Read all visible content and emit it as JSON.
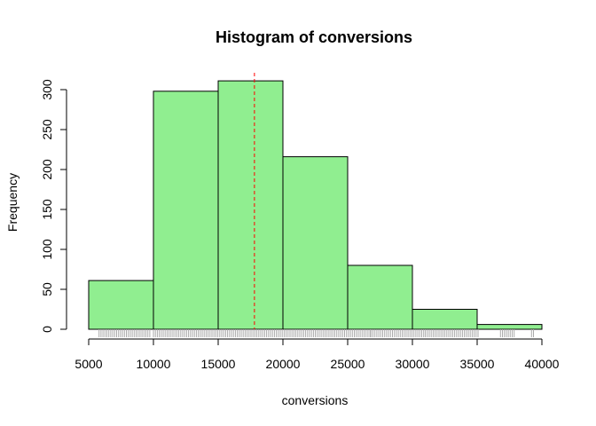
{
  "chart_data": {
    "type": "bar",
    "title": "Histogram of conversions",
    "xlabel": "conversions",
    "ylabel": "Frequency",
    "bins": [
      {
        "start": 5000,
        "end": 10000,
        "count": 61
      },
      {
        "start": 10000,
        "end": 15000,
        "count": 298
      },
      {
        "start": 15000,
        "end": 20000,
        "count": 311
      },
      {
        "start": 20000,
        "end": 25000,
        "count": 216
      },
      {
        "start": 25000,
        "end": 30000,
        "count": 80
      },
      {
        "start": 30000,
        "end": 35000,
        "count": 25
      },
      {
        "start": 35000,
        "end": 40000,
        "count": 6
      }
    ],
    "xlim": [
      5000,
      40000
    ],
    "ylim": [
      0,
      320
    ],
    "x_ticks": [
      5000,
      10000,
      15000,
      20000,
      25000,
      30000,
      35000,
      40000
    ],
    "y_ticks": [
      0,
      50,
      100,
      150,
      200,
      250,
      300
    ],
    "mean_line": 17800,
    "rug_segments": [
      [
        5800,
        9800
      ],
      [
        10000,
        22500
      ],
      [
        22500,
        26800
      ],
      [
        26800,
        31000
      ],
      [
        31000,
        35200
      ],
      [
        36800,
        38000
      ],
      [
        39200,
        39400
      ]
    ],
    "colors": {
      "bar_fill": "#90EE90",
      "bar_stroke": "#000000",
      "mean_line": "#FF0000",
      "rug": "#AAAAAA"
    },
    "grid": false,
    "legend": "none"
  }
}
